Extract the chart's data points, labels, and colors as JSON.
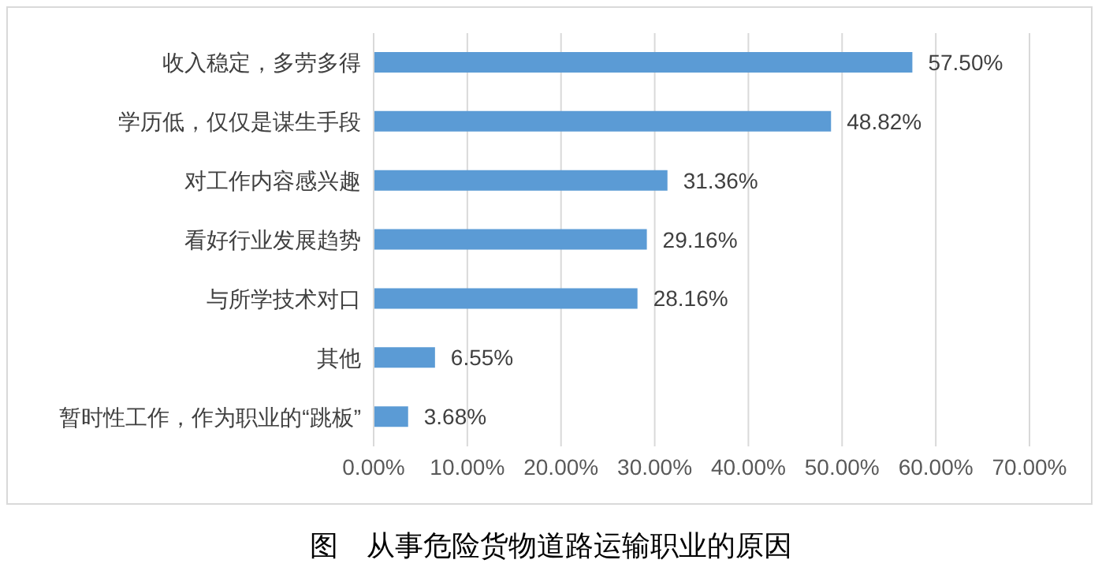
{
  "chart_data": {
    "type": "bar",
    "orientation": "horizontal",
    "categories": [
      "收入稳定，多劳多得",
      "学历低，仅仅是谋生手段",
      "对工作内容感兴趣",
      "看好行业发展趋势",
      "与所学技术对口",
      "其他",
      "暂时性工作，作为职业的“跳板”"
    ],
    "values": [
      57.5,
      48.82,
      31.36,
      29.16,
      28.16,
      6.55,
      3.68
    ],
    "value_labels": [
      "57.50%",
      "48.82%",
      "31.36%",
      "29.16%",
      "28.16%",
      "6.55%",
      "3.68%"
    ],
    "color": "#5b9bd5",
    "xlim": [
      0,
      70
    ],
    "xticks": [
      {
        "value": 0,
        "label": "0.00%"
      },
      {
        "value": 10,
        "label": "10.00%"
      },
      {
        "value": 20,
        "label": "20.00%"
      },
      {
        "value": 30,
        "label": "30.00%"
      },
      {
        "value": 40,
        "label": "40.00%"
      },
      {
        "value": 50,
        "label": "50.00%"
      },
      {
        "value": 60,
        "label": "60.00%"
      },
      {
        "value": 70,
        "label": "70.00%"
      }
    ],
    "grid": "x",
    "annotations": [
      "图　从事危险货物道路运输职业的原因"
    ]
  }
}
